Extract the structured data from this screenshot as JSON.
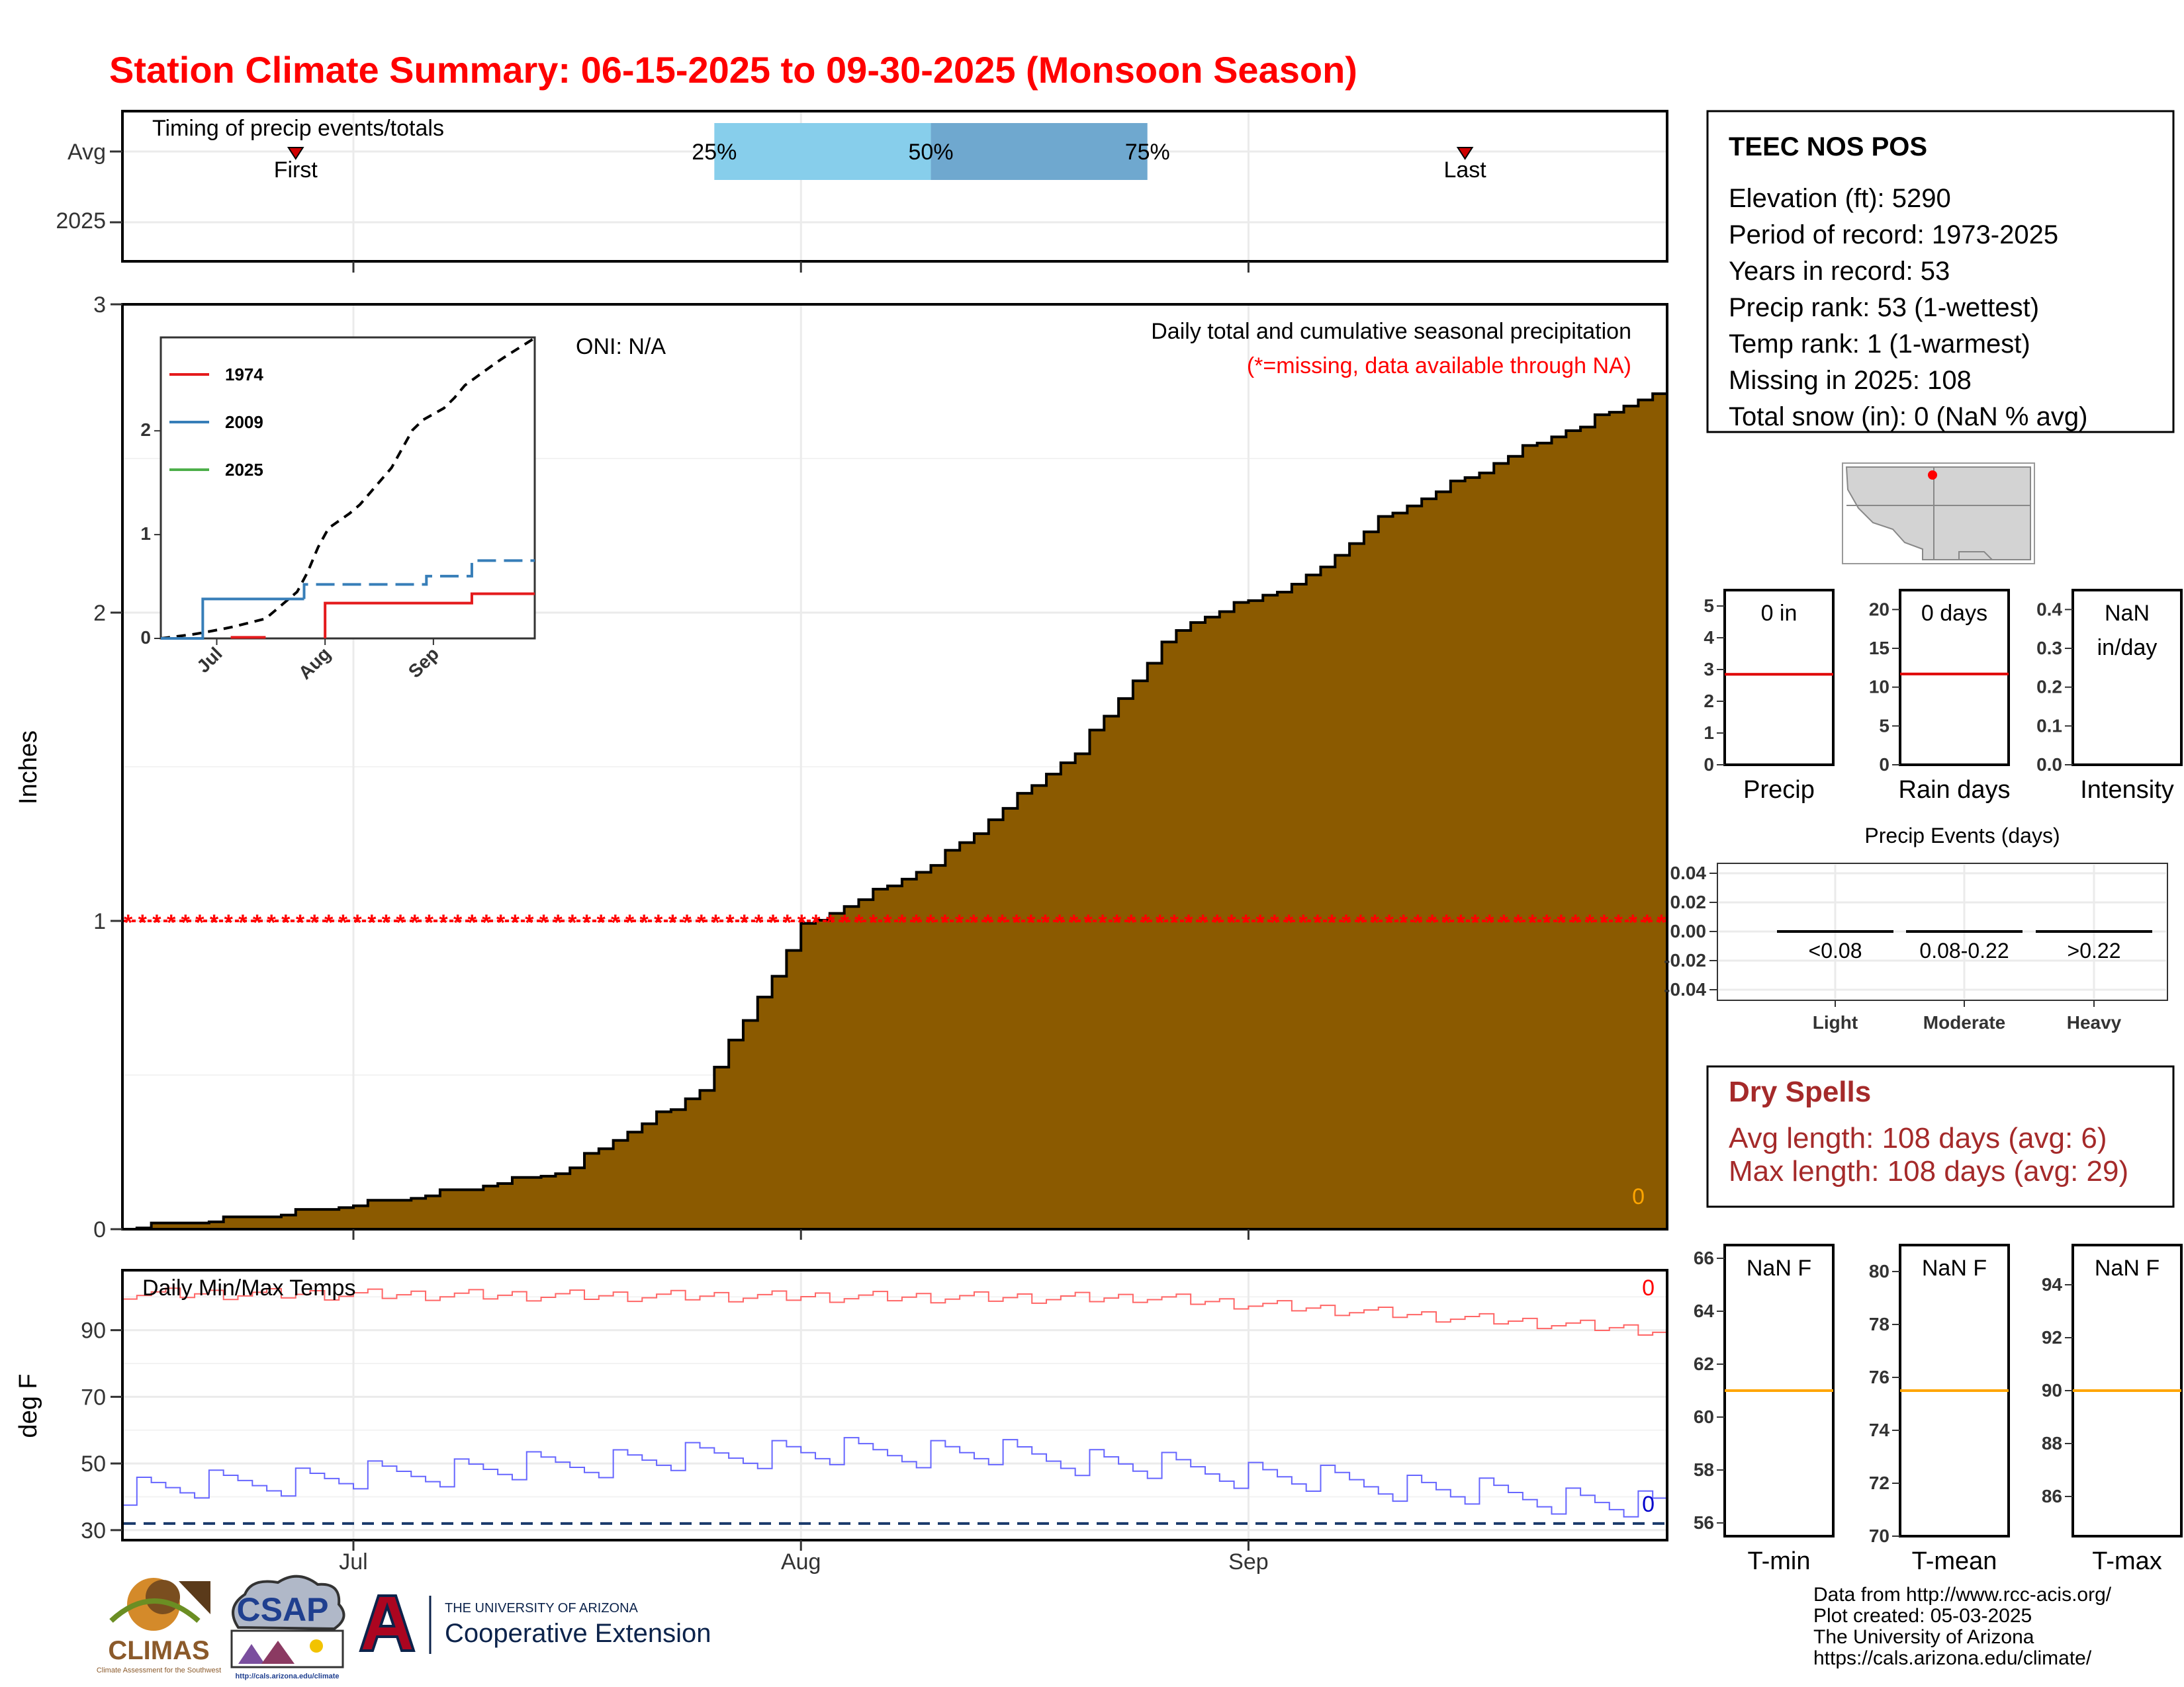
{
  "title": "Station Climate Summary: 06-15-2025 to 09-30-2025 (Monsoon Season)",
  "colors": {
    "title": "#ff0000",
    "precip_fill": "#8b5a00",
    "missing": "#ff0000",
    "tmax": "#ff6666",
    "tmin": "#6666ff",
    "quartile_light": "#87ceeb",
    "quartile_dark": "#6fa8cf",
    "avg_line_red": "#e00000",
    "avg_line_orange": "#ffa500",
    "dry_spells": "#a52a2a"
  },
  "timing": {
    "title": "Timing of precip events/totals",
    "y_labels": [
      "Avg",
      "2025"
    ],
    "first_label": "First",
    "last_label": "Last",
    "q25_label": "25%",
    "q50_label": "50%",
    "q75_label": "75%",
    "first_day": 12,
    "last_day": 93,
    "q25_day": 41,
    "q50_day": 56,
    "q75_day": 71
  },
  "x_ticks": [
    {
      "label": "Jul",
      "day": 16
    },
    {
      "label": "Aug",
      "day": 47
    },
    {
      "label": "Sep",
      "day": 78
    }
  ],
  "main": {
    "ylabel": "Inches",
    "yticks": [
      0,
      1,
      2,
      3
    ],
    "ylim": [
      0,
      3
    ],
    "oni": "ONI: N/A",
    "caption": "Daily total and cumulative seasonal precipitation",
    "missing_note": "(*=missing, data available through NA)",
    "zero_label": "0"
  },
  "inset": {
    "yticks": [
      0,
      1,
      2
    ],
    "xticks": [
      "Jul",
      "Aug",
      "Sep"
    ],
    "legend": [
      {
        "name": "1974",
        "color": "#e41a1c"
      },
      {
        "name": "2009",
        "color": "#377eb8"
      },
      {
        "name": "2025",
        "color": "#4daf4a"
      }
    ]
  },
  "temps": {
    "title": "Daily Min/Max Temps",
    "ylabel": "deg F",
    "yticks": [
      30,
      50,
      70,
      90
    ],
    "ylim": [
      27,
      108
    ],
    "max_zero": "0",
    "min_zero": "0",
    "dashed_value": 32
  },
  "station": {
    "name": "TEEC NOS POS",
    "lines": [
      "Elevation (ft): 5290",
      "Period of record: 1973-2025",
      "Years in record: 53",
      "Precip rank: 53 (1-wettest)",
      "Temp rank: 1 (1-warmest)",
      "Missing in 2025: 108",
      "Total snow (in): 0 (NaN % avg)"
    ]
  },
  "bars": {
    "precip": {
      "label": "Precip",
      "value_text": "0 in",
      "yticks": [
        0,
        1,
        2,
        3,
        4,
        5
      ],
      "ylim": [
        0,
        5.5
      ],
      "avg": 2.85
    },
    "rain_days": {
      "label": "Rain days",
      "value_text": "0 days",
      "yticks": [
        0,
        5,
        10,
        15,
        20
      ],
      "ylim": [
        0,
        22.5
      ],
      "avg": 11.7
    },
    "intensity": {
      "label": "Intensity",
      "value_text_1": "NaN",
      "value_text_2": "in/day",
      "yticks": [
        "0.0",
        "0.1",
        "0.2",
        "0.3",
        "0.4"
      ],
      "ylim": [
        0,
        0.45
      ]
    },
    "tmin": {
      "label": "T-min",
      "value_text": "NaN F",
      "yticks": [
        56,
        58,
        60,
        62,
        64,
        66
      ],
      "ylim": [
        55.5,
        66.5
      ],
      "avg": 61.0
    },
    "tmean": {
      "label": "T-mean",
      "value_text": "NaN F",
      "yticks": [
        70,
        72,
        74,
        76,
        78,
        80
      ],
      "ylim": [
        70,
        81
      ],
      "avg": 75.5
    },
    "tmax": {
      "label": "T-max",
      "value_text": "NaN F",
      "yticks": [
        86,
        88,
        90,
        92,
        94
      ],
      "ylim": [
        84.5,
        95.5
      ],
      "avg": 90.0
    }
  },
  "events": {
    "title": "Precip Events (days)",
    "yticks": [
      "0.04",
      "0.02",
      "0.00",
      "-0.02",
      "-0.04"
    ],
    "classes": [
      {
        "range": "<0.08",
        "name": "Light"
      },
      {
        "range": "0.08-0.22",
        "name": "Moderate"
      },
      {
        "range": ">0.22",
        "name": "Heavy"
      }
    ]
  },
  "dry": {
    "title": "Dry Spells",
    "avg": "Avg length: 108 days (avg: 6)",
    "max": "Max length: 108 days (avg: 29)"
  },
  "logos": {
    "climas": "CLIMAS",
    "climas_sub": "Climate Assessment for the Southwest",
    "csap": "CSAP",
    "csap_url": "http://cals.arizona.edu/climate",
    "ua_top": "THE UNIVERSITY OF ARIZONA",
    "ua_bottom": "Cooperative Extension"
  },
  "footer": [
    "Data from http://www.rcc-acis.org/",
    "Plot created: 05-03-2025",
    "The University of Arizona",
    "https://cals.arizona.edu/climate/"
  ],
  "chart_data": {
    "type": "area",
    "title": "Station Climate Summary: 06-15-2025 to 09-30-2025 (Monsoon Season)",
    "x_start": "2025-06-15",
    "x_end": "2025-09-30",
    "ylabel": "Inches",
    "ylim": [
      0,
      3
    ],
    "series": [
      {
        "name": "cumulative average",
        "x": [
          "2025-06-15",
          "2025-06-25",
          "2025-07-05",
          "2025-07-15",
          "2025-07-25",
          "2025-08-01",
          "2025-08-10",
          "2025-08-20",
          "2025-08-27",
          "2025-09-05",
          "2025-09-10",
          "2025-09-20",
          "2025-09-30"
        ],
        "values": [
          0,
          0.04,
          0.1,
          0.18,
          0.45,
          0.98,
          1.18,
          1.55,
          1.95,
          2.11,
          2.3,
          2.53,
          2.73
        ]
      }
    ],
    "missing_value": 1.0
  }
}
